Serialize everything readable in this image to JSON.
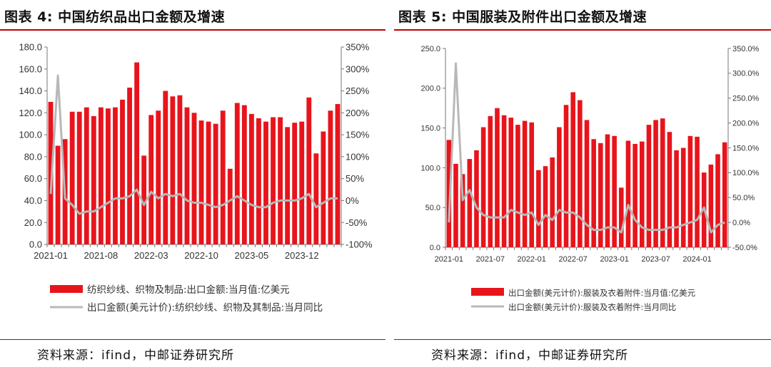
{
  "colors": {
    "accent": "#c00000",
    "bar": "#e8141b",
    "line": "#b8b8b8"
  },
  "source_label": "资料来源：ifind，中邮证券研究所",
  "chart_data": [
    {
      "figure_label": "图表 4:",
      "title": "中国纺织品出口金额及增速",
      "type": "bar+line",
      "xlabels": [
        "2021-01",
        "2021-08",
        "2022-03",
        "2022-10",
        "2023-05",
        "2023-12"
      ],
      "x_tick_positions": [
        0,
        7,
        14,
        21,
        28,
        35
      ],
      "y_left": {
        "ticks": [
          0,
          20,
          40,
          60,
          80,
          100,
          120,
          140,
          160,
          180
        ],
        "tick_labels": [
          "0.0",
          "20.0",
          "40.0",
          "60.0",
          "80.0",
          "100.0",
          "120.0",
          "140.0",
          "160.0",
          "180.0"
        ],
        "range": [
          0,
          180
        ]
      },
      "y_right": {
        "ticks": [
          -100,
          -50,
          0,
          50,
          100,
          150,
          200,
          250,
          300,
          350
        ],
        "tick_labels": [
          "-100%",
          "-50%",
          "0%",
          "50%",
          "100%",
          "150%",
          "200%",
          "250%",
          "300%",
          "350%"
        ],
        "range": [
          -100,
          350
        ]
      },
      "series": [
        {
          "name": "纺织纱线、织物及制品:出口金额:当月值:亿美元",
          "kind": "bar",
          "axis": "left",
          "values": [
            130,
            90,
            96,
            121,
            121,
            125,
            117,
            125,
            124,
            125,
            132,
            143,
            166,
            81,
            118,
            122,
            140,
            135,
            136,
            125,
            120,
            113,
            112,
            110,
            122,
            69,
            129,
            127,
            119,
            115,
            112,
            116,
            116,
            107,
            111,
            112,
            134,
            83,
            103,
            122,
            128
          ]
        },
        {
          "name": "出口金额(美元计价):纺织纱线、织物及其制品:当月同比",
          "kind": "line",
          "axis": "right",
          "values": [
            15,
            285,
            5,
            -10,
            -30,
            -25,
            -25,
            -15,
            -5,
            5,
            5,
            10,
            25,
            -10,
            20,
            5,
            15,
            10,
            15,
            0,
            -5,
            -5,
            -10,
            -15,
            -10,
            0,
            10,
            0,
            -10,
            -15,
            -15,
            -5,
            0,
            0,
            0,
            5,
            15,
            -15,
            -5,
            5,
            5
          ]
        }
      ]
    },
    {
      "figure_label": "图表 5:",
      "title": "中国服装及附件出口金额及增速",
      "type": "bar+line",
      "xlabels": [
        "2021-01",
        "2021-07",
        "2022-01",
        "2022-07",
        "2023-01",
        "2023-07",
        "2024-01"
      ],
      "x_tick_positions": [
        0,
        6,
        12,
        18,
        24,
        30,
        36
      ],
      "y_left": {
        "ticks": [
          0,
          50,
          100,
          150,
          200,
          250
        ],
        "tick_labels": [
          "0.0",
          "50.0",
          "100.0",
          "150.0",
          "200.0",
          "250.0"
        ],
        "range": [
          0,
          250
        ]
      },
      "y_right": {
        "ticks": [
          -50,
          0,
          50,
          100,
          150,
          200,
          250,
          300,
          350
        ],
        "tick_labels": [
          "-50.0%",
          "0.0%",
          "50.0%",
          "100.0%",
          "150.0%",
          "200.0%",
          "250.0%",
          "300.0%",
          "350.0%"
        ],
        "range": [
          -50,
          350
        ]
      },
      "series": [
        {
          "name": "出口金额(美元计价):服装及衣着附件:当月值:亿美元",
          "kind": "bar",
          "axis": "left",
          "values": [
            135,
            105,
            92,
            111,
            122,
            151,
            165,
            175,
            166,
            163,
            154,
            159,
            157,
            97,
            102,
            113,
            151,
            179,
            195,
            185,
            160,
            136,
            131,
            142,
            140,
            75,
            134,
            130,
            133,
            154,
            160,
            162,
            145,
            122,
            125,
            140,
            139,
            94,
            104,
            117,
            132
          ]
        },
        {
          "name": "出口金额(美元计价):服装及衣着附件:当月同比",
          "kind": "line",
          "axis": "right",
          "values": [
            0,
            320,
            45,
            65,
            30,
            15,
            10,
            10,
            10,
            25,
            20,
            15,
            20,
            -5,
            15,
            5,
            25,
            20,
            20,
            10,
            -5,
            -15,
            -15,
            -10,
            -10,
            -20,
            35,
            5,
            -10,
            -15,
            -15,
            -15,
            -10,
            -10,
            -5,
            0,
            5,
            30,
            -20,
            -5,
            0
          ]
        }
      ]
    }
  ]
}
